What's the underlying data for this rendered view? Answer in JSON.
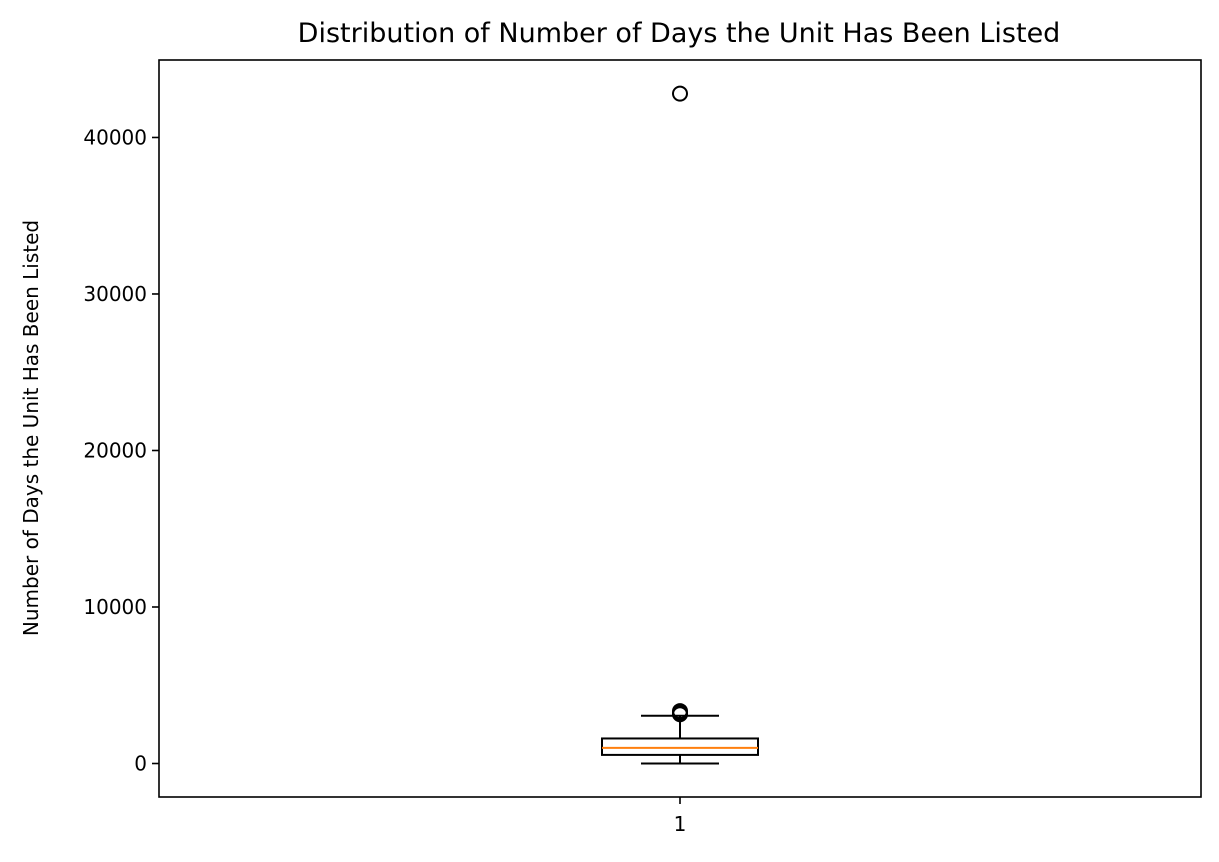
{
  "chart_data": {
    "type": "box",
    "title": "Distribution of Number of Days the Unit Has Been Listed",
    "xlabel": "",
    "ylabel": "Number of Days the Unit Has Been Listed",
    "categories": [
      "1"
    ],
    "ylim": [
      -2140,
      44950
    ],
    "yticks": [
      0,
      10000,
      20000,
      30000,
      40000
    ],
    "yticklabels": [
      "0",
      "10000",
      "20000",
      "30000",
      "40000"
    ],
    "grid": false,
    "legend": "none",
    "boxes": [
      {
        "category": "1",
        "whisker_low": 0,
        "q1": 550,
        "median": 1000,
        "q3": 1600,
        "whisker_high": 3050,
        "outliers": [
          3150,
          3250,
          3350,
          42800
        ]
      }
    ],
    "colors": {
      "box": "#000000",
      "median": "#ff7f0e",
      "outlier": "#000000"
    }
  }
}
